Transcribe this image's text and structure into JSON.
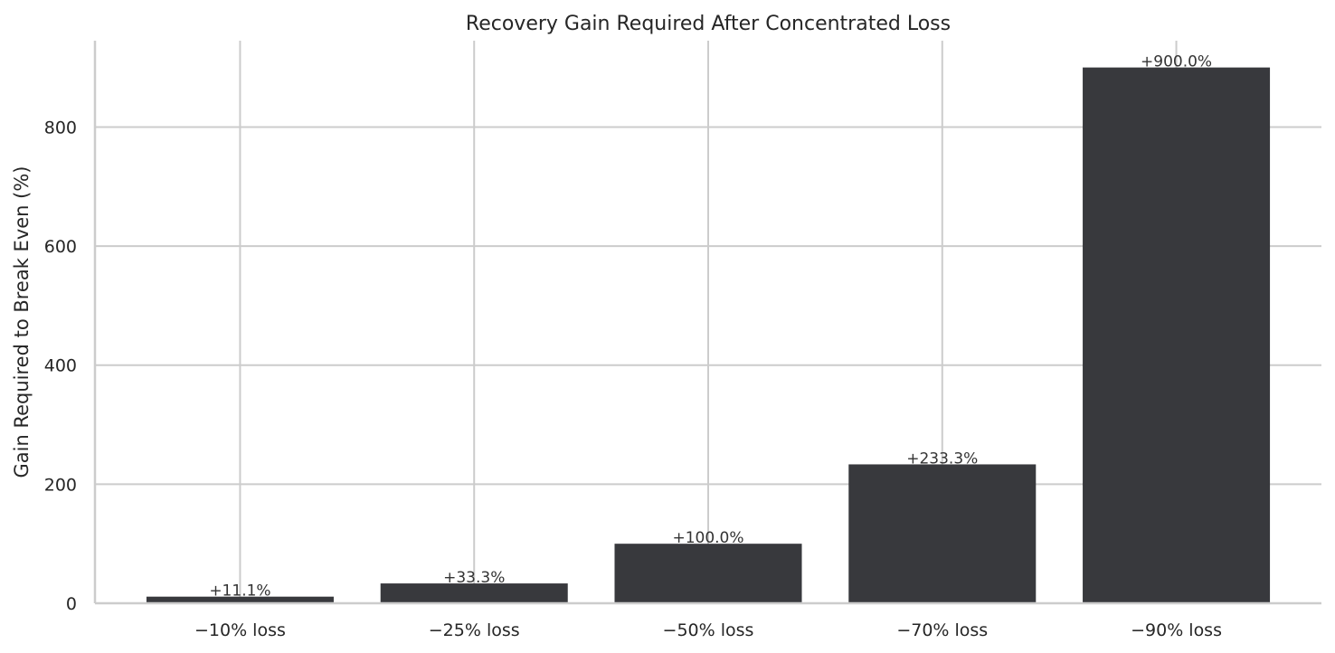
{
  "chart_data": {
    "type": "bar",
    "title": "Recovery Gain Required After Concentrated Loss",
    "xlabel": "",
    "ylabel": "Gain Required to Break Even (%)",
    "categories": [
      "−10% loss",
      "−25% loss",
      "−50% loss",
      "−70% loss",
      "−90% loss"
    ],
    "values": [
      11.1,
      33.3,
      100.0,
      233.3,
      900.0
    ],
    "data_labels": [
      "+11.1%",
      "+33.3%",
      "+100.0%",
      "+233.3%",
      "+900.0%"
    ],
    "ylim": [
      0,
      945
    ],
    "yticks": [
      0,
      200,
      400,
      600,
      800
    ],
    "ytick_labels": [
      "0",
      "200",
      "400",
      "600",
      "800"
    ],
    "grid": true,
    "legend": false,
    "bar_color": "#38393d",
    "grid_color": "#cccccc"
  }
}
